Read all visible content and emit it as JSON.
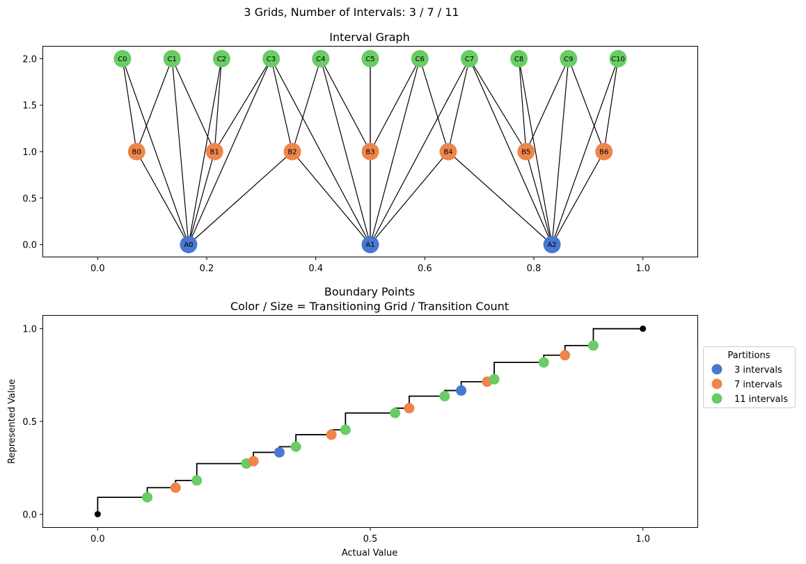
{
  "figure": {
    "suptitle": "3 Grids, Number of Intervals: 3 / 7 / 11"
  },
  "colors": {
    "grid3": "#4878d0",
    "grid7": "#ee854a",
    "grid11": "#6acc64",
    "endpoint": "#000000",
    "line": "#000000"
  },
  "chart_data": [
    {
      "type": "network",
      "title": "Interval Graph",
      "xlim": [
        -0.1,
        1.1
      ],
      "ylim": [
        -0.13,
        2.13
      ],
      "xticks": [
        0.0,
        0.2,
        0.4,
        0.6,
        0.8,
        1.0
      ],
      "xtick_labels": [
        "0.0",
        "0.2",
        "0.4",
        "0.6",
        "0.8",
        "1.0"
      ],
      "yticks": [
        0.0,
        0.5,
        1.0,
        1.5,
        2.0
      ],
      "ytick_labels": [
        "0.0",
        "0.5",
        "1.0",
        "1.5",
        "2.0"
      ],
      "nodes": [
        {
          "id": "A0",
          "x": 0.1667,
          "y": 0,
          "group": "grid3"
        },
        {
          "id": "A1",
          "x": 0.5,
          "y": 0,
          "group": "grid3"
        },
        {
          "id": "A2",
          "x": 0.8333,
          "y": 0,
          "group": "grid3"
        },
        {
          "id": "B0",
          "x": 0.0714,
          "y": 1,
          "group": "grid7"
        },
        {
          "id": "B1",
          "x": 0.2143,
          "y": 1,
          "group": "grid7"
        },
        {
          "id": "B2",
          "x": 0.3571,
          "y": 1,
          "group": "grid7"
        },
        {
          "id": "B3",
          "x": 0.5,
          "y": 1,
          "group": "grid7"
        },
        {
          "id": "B4",
          "x": 0.6429,
          "y": 1,
          "group": "grid7"
        },
        {
          "id": "B5",
          "x": 0.7857,
          "y": 1,
          "group": "grid7"
        },
        {
          "id": "B6",
          "x": 0.9286,
          "y": 1,
          "group": "grid7"
        },
        {
          "id": "C0",
          "x": 0.0455,
          "y": 2,
          "group": "grid11"
        },
        {
          "id": "C1",
          "x": 0.1364,
          "y": 2,
          "group": "grid11"
        },
        {
          "id": "C2",
          "x": 0.2273,
          "y": 2,
          "group": "grid11"
        },
        {
          "id": "C3",
          "x": 0.3182,
          "y": 2,
          "group": "grid11"
        },
        {
          "id": "C4",
          "x": 0.4091,
          "y": 2,
          "group": "grid11"
        },
        {
          "id": "C5",
          "x": 0.5,
          "y": 2,
          "group": "grid11"
        },
        {
          "id": "C6",
          "x": 0.5909,
          "y": 2,
          "group": "grid11"
        },
        {
          "id": "C7",
          "x": 0.6818,
          "y": 2,
          "group": "grid11"
        },
        {
          "id": "C8",
          "x": 0.7727,
          "y": 2,
          "group": "grid11"
        },
        {
          "id": "C9",
          "x": 0.8636,
          "y": 2,
          "group": "grid11"
        },
        {
          "id": "C10",
          "x": 0.9545,
          "y": 2,
          "group": "grid11"
        }
      ],
      "edges": [
        [
          "A0",
          "B0"
        ],
        [
          "A0",
          "B1"
        ],
        [
          "A0",
          "B2"
        ],
        [
          "A0",
          "C0"
        ],
        [
          "A0",
          "C1"
        ],
        [
          "A0",
          "C2"
        ],
        [
          "A0",
          "C3"
        ],
        [
          "A1",
          "B2"
        ],
        [
          "A1",
          "B3"
        ],
        [
          "A1",
          "B4"
        ],
        [
          "A1",
          "C3"
        ],
        [
          "A1",
          "C4"
        ],
        [
          "A1",
          "C5"
        ],
        [
          "A1",
          "C6"
        ],
        [
          "A1",
          "C7"
        ],
        [
          "A2",
          "B4"
        ],
        [
          "A2",
          "B5"
        ],
        [
          "A2",
          "B6"
        ],
        [
          "A2",
          "C7"
        ],
        [
          "A2",
          "C8"
        ],
        [
          "A2",
          "C9"
        ],
        [
          "A2",
          "C10"
        ],
        [
          "B0",
          "C0"
        ],
        [
          "B0",
          "C1"
        ],
        [
          "B1",
          "C1"
        ],
        [
          "B1",
          "C2"
        ],
        [
          "B1",
          "C3"
        ],
        [
          "B2",
          "C3"
        ],
        [
          "B2",
          "C4"
        ],
        [
          "B3",
          "C4"
        ],
        [
          "B3",
          "C5"
        ],
        [
          "B3",
          "C6"
        ],
        [
          "B4",
          "C6"
        ],
        [
          "B4",
          "C7"
        ],
        [
          "B5",
          "C7"
        ],
        [
          "B5",
          "C8"
        ],
        [
          "B5",
          "C9"
        ],
        [
          "B6",
          "C9"
        ],
        [
          "B6",
          "C10"
        ]
      ]
    },
    {
      "type": "scatter",
      "title": "Boundary Points",
      "subtitle": "Color / Size = Transitioning Grid / Transition Count",
      "xlabel": "Actual Value",
      "ylabel": "Represented Value",
      "xlim": [
        -0.1,
        1.1
      ],
      "ylim": [
        -0.07,
        1.07
      ],
      "xticks": [
        0.0,
        0.5,
        1.0
      ],
      "xtick_labels": [
        "0.0",
        "0.5",
        "1.0"
      ],
      "yticks": [
        0.0,
        0.5,
        1.0
      ],
      "ytick_labels": [
        "0.0",
        "0.5",
        "1.0"
      ],
      "legend": {
        "title": "Partitions",
        "placement": "right outside",
        "entries": [
          {
            "label": "3 intervals",
            "group": "grid3"
          },
          {
            "label": "7 intervals",
            "group": "grid7"
          },
          {
            "label": "11 intervals",
            "group": "grid11"
          }
        ]
      },
      "step_line": [
        [
          0.0,
          0.0
        ],
        [
          0.0,
          0.0909
        ],
        [
          0.0909,
          0.0909
        ],
        [
          0.0909,
          0.1429
        ],
        [
          0.1429,
          0.1429
        ],
        [
          0.1429,
          0.1818
        ],
        [
          0.1818,
          0.1818
        ],
        [
          0.1818,
          0.2727
        ],
        [
          0.2727,
          0.2727
        ],
        [
          0.2727,
          0.2857
        ],
        [
          0.2857,
          0.2857
        ],
        [
          0.2857,
          0.3333
        ],
        [
          0.3333,
          0.3333
        ],
        [
          0.3333,
          0.3636
        ],
        [
          0.3636,
          0.3636
        ],
        [
          0.3636,
          0.4286
        ],
        [
          0.4286,
          0.4286
        ],
        [
          0.4286,
          0.4545
        ],
        [
          0.4545,
          0.4545
        ],
        [
          0.4545,
          0.5455
        ],
        [
          0.5455,
          0.5455
        ],
        [
          0.5455,
          0.5714
        ],
        [
          0.5714,
          0.5714
        ],
        [
          0.5714,
          0.6364
        ],
        [
          0.6364,
          0.6364
        ],
        [
          0.6364,
          0.6667
        ],
        [
          0.6667,
          0.6667
        ],
        [
          0.6667,
          0.7143
        ],
        [
          0.7143,
          0.7143
        ],
        [
          0.7143,
          0.7273
        ],
        [
          0.7273,
          0.7273
        ],
        [
          0.7273,
          0.8182
        ],
        [
          0.8182,
          0.8182
        ],
        [
          0.8182,
          0.8571
        ],
        [
          0.8571,
          0.8571
        ],
        [
          0.8571,
          0.9091
        ],
        [
          0.9091,
          0.9091
        ],
        [
          0.9091,
          1.0
        ],
        [
          1.0,
          1.0
        ]
      ],
      "endpoints": [
        [
          0.0,
          0.0
        ],
        [
          1.0,
          1.0
        ]
      ],
      "points": [
        {
          "x": 0.0909,
          "y": 0.0909,
          "group": "grid11"
        },
        {
          "x": 0.1429,
          "y": 0.1429,
          "group": "grid7"
        },
        {
          "x": 0.1818,
          "y": 0.1818,
          "group": "grid11"
        },
        {
          "x": 0.2727,
          "y": 0.2727,
          "group": "grid11"
        },
        {
          "x": 0.2857,
          "y": 0.2857,
          "group": "grid7"
        },
        {
          "x": 0.3333,
          "y": 0.3333,
          "group": "grid3"
        },
        {
          "x": 0.3636,
          "y": 0.3636,
          "group": "grid11"
        },
        {
          "x": 0.4286,
          "y": 0.4286,
          "group": "grid7"
        },
        {
          "x": 0.4545,
          "y": 0.4545,
          "group": "grid11"
        },
        {
          "x": 0.5455,
          "y": 0.5455,
          "group": "grid11"
        },
        {
          "x": 0.5714,
          "y": 0.5714,
          "group": "grid7"
        },
        {
          "x": 0.6364,
          "y": 0.6364,
          "group": "grid11"
        },
        {
          "x": 0.6667,
          "y": 0.6667,
          "group": "grid3"
        },
        {
          "x": 0.7143,
          "y": 0.7143,
          "group": "grid7"
        },
        {
          "x": 0.7273,
          "y": 0.7273,
          "group": "grid11"
        },
        {
          "x": 0.8182,
          "y": 0.8182,
          "group": "grid11"
        },
        {
          "x": 0.8571,
          "y": 0.8571,
          "group": "grid7"
        },
        {
          "x": 0.9091,
          "y": 0.9091,
          "group": "grid11"
        }
      ]
    }
  ]
}
